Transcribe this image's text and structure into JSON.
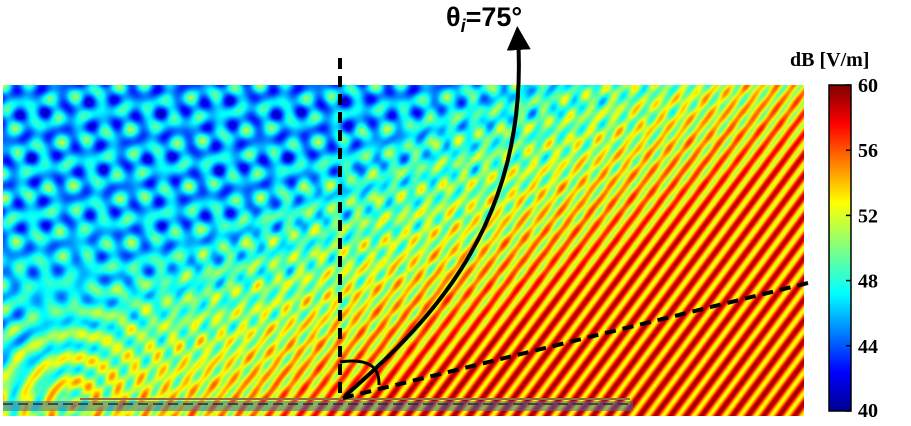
{
  "figure": {
    "angle_label": {
      "symbol": "θ",
      "subscript": "i",
      "value": "=75°"
    },
    "colorbar": {
      "title": "dB [V/m]",
      "ticks": [
        "60",
        "56",
        "52",
        "48",
        "44",
        "40"
      ],
      "min": 40,
      "max": 60,
      "colormap": "jet",
      "colors": [
        "#00008f",
        "#0000ff",
        "#0080ff",
        "#00ffff",
        "#80ff80",
        "#ffff00",
        "#ff8000",
        "#ff0000",
        "#800000"
      ]
    },
    "field_map": {
      "colormap": "jet",
      "annotations": [
        "vertical dashed normal line",
        "dashed incidence direction line",
        "curved arrow",
        "angle arc"
      ]
    }
  }
}
